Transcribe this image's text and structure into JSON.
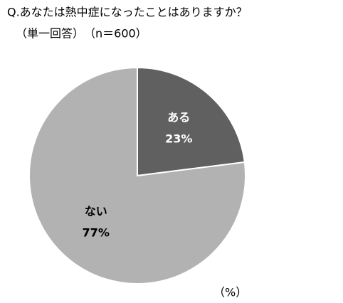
{
  "chart_data": {
    "type": "pie",
    "title": "Q.あなたは熱中症になったことはありますか？",
    "subtitle": "（単一回答）　（n＝600）",
    "categories": [
      "ある",
      "ない"
    ],
    "values": [
      23,
      77
    ],
    "value_labels": [
      "23%",
      "77%"
    ],
    "colors": [
      "#606060",
      "#b2b2b2"
    ],
    "unit_label": "（%）"
  }
}
